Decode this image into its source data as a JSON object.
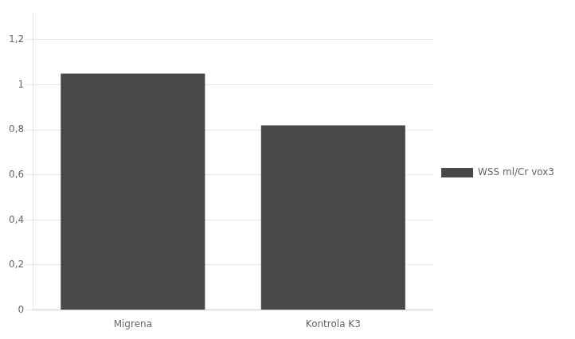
{
  "chart_data": {
    "type": "bar",
    "categories": [
      "Migrena",
      "Kontrola K3"
    ],
    "series": [
      {
        "name": "WSS ml/Cr vox3",
        "color": "#484848",
        "values": [
          1.05,
          0.82
        ]
      }
    ],
    "ylim": [
      0,
      1.32
    ],
    "yticks": [
      0,
      {
        "value": 0.2,
        "label": "0,2"
      },
      {
        "value": 0.4,
        "label": "0,4"
      },
      {
        "value": 0.6,
        "label": "0,6"
      },
      {
        "value": 0.8,
        "label": "0,8"
      },
      1,
      {
        "value": 1.2,
        "label": "1,2"
      }
    ],
    "grid": true,
    "legend": "right"
  }
}
